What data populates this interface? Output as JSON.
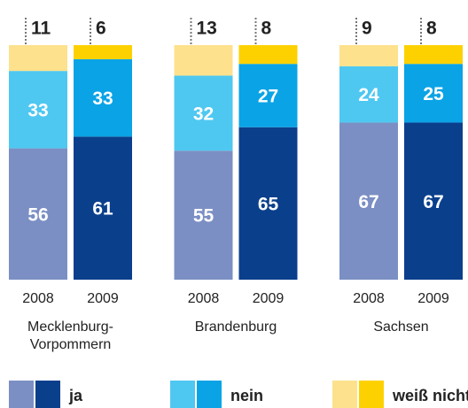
{
  "chart_data": {
    "type": "stacked_bar",
    "groups": [
      {
        "label_lines": [
          "Mecklenburg-",
          "Vorpommern"
        ],
        "years": [
          "2008",
          "2009"
        ]
      },
      {
        "label_lines": [
          "Brandenburg"
        ],
        "years": [
          "2008",
          "2009"
        ]
      },
      {
        "label_lines": [
          "Sachsen"
        ],
        "years": [
          "2008",
          "2009"
        ]
      }
    ],
    "ylim": [
      0,
      100
    ],
    "series": [
      {
        "name": "ja",
        "colors": [
          "#7b8fc4",
          "#0a3f8c"
        ],
        "values": [
          56,
          61,
          55,
          65,
          67,
          67
        ]
      },
      {
        "name": "nein",
        "colors": [
          "#4ec8f1",
          "#0aa3e6"
        ],
        "values": [
          33,
          33,
          32,
          27,
          24,
          25
        ]
      },
      {
        "name": "weiß nicht",
        "colors": [
          "#fde18c",
          "#fdd100"
        ],
        "values": [
          11,
          6,
          13,
          8,
          9,
          8
        ]
      }
    ]
  }
}
